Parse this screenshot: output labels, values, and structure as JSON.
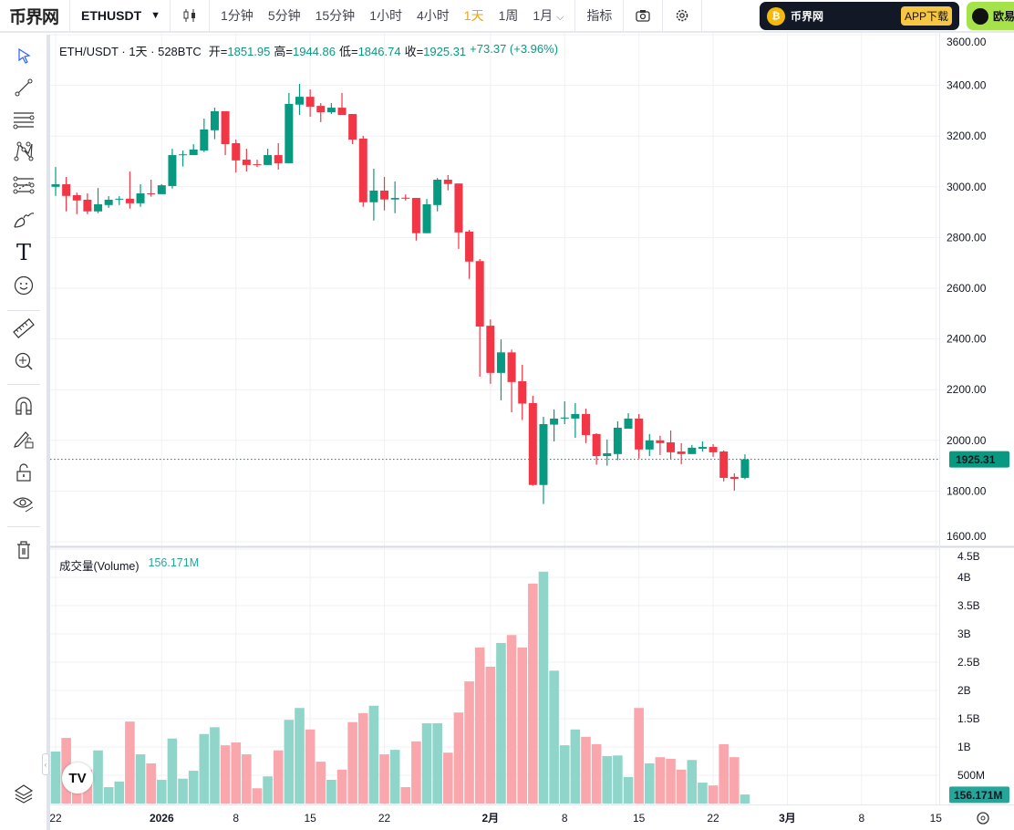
{
  "topbar": {
    "logo": "币界网",
    "symbol": "ETHUSDT",
    "symbol_caret": "▼",
    "intervals": [
      "1分钟",
      "5分钟",
      "15分钟",
      "1小时",
      "4小时",
      "1天",
      "1周",
      "1月"
    ],
    "active_interval": "1天",
    "more_caret": "⌵",
    "indicators": "指标"
  },
  "ads": {
    "ad1_name": "币界网",
    "ad1_button": "APP下载",
    "ad2_name": "欧易"
  },
  "legend": {
    "title": "ETH/USDT · 1天 · 528BTC",
    "open_label": "开=",
    "open": "1851.95",
    "high_label": "高=",
    "high": "1944.86",
    "low_label": "低=",
    "low": "1846.74",
    "close_label": "收=",
    "close": "1925.31",
    "change": "+73.37 (+3.96%)"
  },
  "volume_legend": {
    "label": "成交量(Volume)",
    "value": "156.171M"
  },
  "colors": {
    "up": "#089981",
    "down": "#F23645",
    "vol_up": "#8fd5c9",
    "vol_down": "#f9a7ad"
  },
  "chart_data": {
    "type": "candlestick",
    "price_axis": {
      "min": 1600,
      "max": 3600,
      "ticks": [
        "3600.00",
        "3400.00",
        "3200.00",
        "3000.00",
        "2800.00",
        "2600.00",
        "2400.00",
        "2200.00",
        "2000.00",
        "1800.00",
        "1600.00"
      ],
      "last_price": "1925.31",
      "last_value": 1925.31
    },
    "volume_axis": {
      "ticks": [
        {
          "label": "4.5B",
          "v": 4.5
        },
        {
          "label": "4B",
          "v": 4
        },
        {
          "label": "3.5B",
          "v": 3.5
        },
        {
          "label": "3B",
          "v": 3
        },
        {
          "label": "2.5B",
          "v": 2.5
        },
        {
          "label": "2B",
          "v": 2
        },
        {
          "label": "1.5B",
          "v": 1.5
        },
        {
          "label": "1B",
          "v": 1
        },
        {
          "label": "500M",
          "v": 0.5
        }
      ],
      "last_volume": "156.171M"
    },
    "time_axis": [
      {
        "label": "22",
        "day": 0
      },
      {
        "label": "2026",
        "day": 10
      },
      {
        "label": "8",
        "day": 17
      },
      {
        "label": "15",
        "day": 24
      },
      {
        "label": "22",
        "day": 31
      },
      {
        "label": "2月",
        "day": 41
      },
      {
        "label": "8",
        "day": 48
      },
      {
        "label": "15",
        "day": 55
      },
      {
        "label": "22",
        "day": 62
      },
      {
        "label": "3月",
        "day": 69
      },
      {
        "label": "8",
        "day": 76
      },
      {
        "label": "15",
        "day": 83
      }
    ],
    "ohlc": [
      [
        3000,
        3078,
        2964,
        3010
      ],
      [
        3010,
        3039,
        2903,
        2964
      ],
      [
        2967,
        2977,
        2892,
        2946
      ],
      [
        2949,
        2974,
        2892,
        2903
      ],
      [
        2903,
        2995,
        2896,
        2931
      ],
      [
        2928,
        2963,
        2917,
        2949
      ],
      [
        2951,
        2963,
        2928,
        2953
      ],
      [
        2953,
        3060,
        2914,
        2935
      ],
      [
        2935,
        3010,
        2921,
        2974
      ],
      [
        2974,
        3028,
        2961,
        2971
      ],
      [
        2971,
        3010,
        2971,
        3006
      ],
      [
        3003,
        3150,
        2993,
        3125
      ],
      [
        3126,
        3143,
        3080,
        3128
      ],
      [
        3125,
        3168,
        3125,
        3147
      ],
      [
        3143,
        3269,
        3137,
        3226
      ],
      [
        3223,
        3312,
        3188,
        3298
      ],
      [
        3298,
        3298,
        3125,
        3168
      ],
      [
        3172,
        3186,
        3057,
        3104
      ],
      [
        3107,
        3150,
        3060,
        3086
      ],
      [
        3089,
        3107,
        3078,
        3087
      ],
      [
        3086,
        3150,
        3086,
        3125
      ],
      [
        3125,
        3172,
        3068,
        3093
      ],
      [
        3093,
        3370,
        3093,
        3327
      ],
      [
        3324,
        3406,
        3283,
        3355
      ],
      [
        3355,
        3384,
        3276,
        3316
      ],
      [
        3319,
        3330,
        3255,
        3294
      ],
      [
        3294,
        3330,
        3287,
        3312
      ],
      [
        3312,
        3370,
        3283,
        3283
      ],
      [
        3287,
        3287,
        3168,
        3186
      ],
      [
        3190,
        3201,
        2921,
        2939
      ],
      [
        2939,
        3071,
        2867,
        2985
      ],
      [
        2985,
        3039,
        2907,
        2950
      ],
      [
        2950,
        3021,
        2896,
        2956
      ],
      [
        2957,
        2970,
        2946,
        2953
      ],
      [
        2956,
        2956,
        2788,
        2817
      ],
      [
        2817,
        2952,
        2817,
        2931
      ],
      [
        2928,
        3035,
        2903,
        3028
      ],
      [
        3028,
        3046,
        2986,
        3011
      ],
      [
        3013,
        3013,
        2755,
        2820
      ],
      [
        2823,
        2830,
        2637,
        2705
      ],
      [
        2707,
        2715,
        2251,
        2449
      ],
      [
        2452,
        2477,
        2223,
        2266
      ],
      [
        2266,
        2398,
        2158,
        2347
      ],
      [
        2347,
        2358,
        2111,
        2230
      ],
      [
        2233,
        2298,
        2080,
        2145
      ],
      [
        2147,
        2176,
        1821,
        1824
      ],
      [
        1824,
        2093,
        1749,
        2064
      ],
      [
        2062,
        2122,
        1996,
        2086
      ],
      [
        2086,
        2154,
        2064,
        2090
      ],
      [
        2086,
        2147,
        2010,
        2104
      ],
      [
        2104,
        2125,
        1989,
        2021
      ],
      [
        2025,
        2028,
        1904,
        1938
      ],
      [
        1938,
        2003,
        1900,
        1949
      ],
      [
        1946,
        2075,
        1922,
        2050
      ],
      [
        2046,
        2107,
        2046,
        2086
      ],
      [
        2086,
        2104,
        1928,
        1964
      ],
      [
        1964,
        2025,
        1938,
        2000
      ],
      [
        2000,
        2018,
        1942,
        1989
      ],
      [
        1992,
        2039,
        1924,
        1953
      ],
      [
        1956,
        1989,
        1906,
        1946
      ],
      [
        1946,
        1982,
        1946,
        1971
      ],
      [
        1967,
        1996,
        1956,
        1974
      ],
      [
        1974,
        1985,
        1935,
        1953
      ],
      [
        1956,
        1960,
        1838,
        1852
      ],
      [
        1856,
        1870,
        1802,
        1848
      ],
      [
        1851.95,
        1944.86,
        1846.74,
        1925.31
      ]
    ],
    "volume_billions": [
      0.92,
      1.16,
      0.65,
      0.6,
      0.94,
      0.29,
      0.39,
      1.45,
      0.87,
      0.71,
      0.42,
      1.15,
      0.44,
      0.58,
      1.23,
      1.35,
      1.03,
      1.08,
      0.87,
      0.27,
      0.48,
      0.94,
      1.48,
      1.69,
      1.31,
      0.74,
      0.42,
      0.6,
      1.44,
      1.6,
      1.73,
      0.87,
      0.95,
      0.29,
      1.1,
      1.42,
      1.42,
      0.9,
      1.61,
      2.16,
      2.76,
      2.42,
      2.84,
      2.98,
      2.76,
      3.89,
      4.1,
      2.35,
      1.03,
      1.31,
      1.18,
      1.05,
      0.84,
      0.85,
      0.47,
      1.69,
      0.71,
      0.82,
      0.79,
      0.6,
      0.77,
      0.37,
      0.32,
      1.05,
      0.82,
      0.16
    ]
  }
}
